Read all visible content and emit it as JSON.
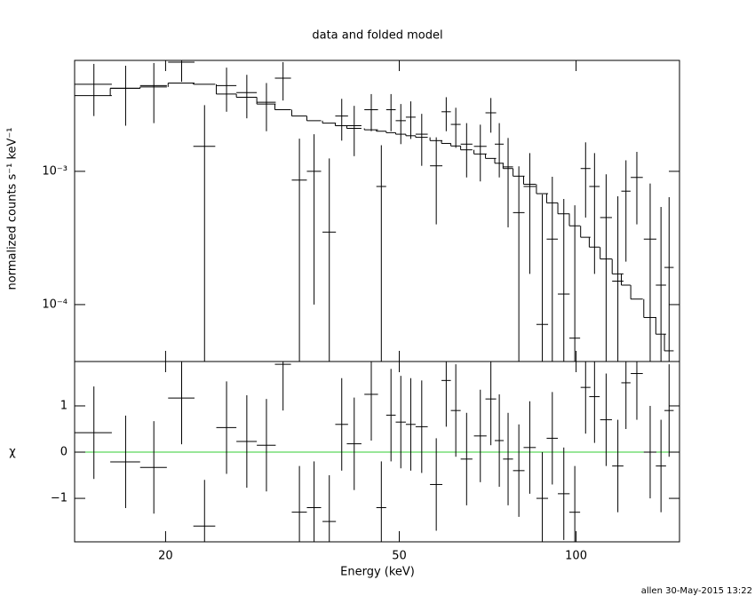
{
  "chart_data": [
    {
      "type": "errorbar",
      "title": "data and folded model",
      "ylabel": "normalized counts s⁻¹ keV⁻¹",
      "log_x": true,
      "log_y": true,
      "color": "#000000",
      "xlim": [
        14,
        150
      ],
      "ylim": [
        3.74e-05,
        0.0068
      ],
      "yticks": [
        {
          "value": 0.001,
          "label": "10⁻³"
        },
        {
          "value": 0.0001,
          "label": "10⁻⁴"
        }
      ],
      "x": [
        15.1,
        17.1,
        19.1,
        21.3,
        23.3,
        25.4,
        27.5,
        29.7,
        31.7,
        33.8,
        35.8,
        38.0,
        39.9,
        41.9,
        44.8,
        46.6,
        48.4,
        50.3,
        52.3,
        54.6,
        57.8,
        60.1,
        62.4,
        65.1,
        68.7,
        71.6,
        74.0,
        76.6,
        79.9,
        83.4,
        87.6,
        91.1,
        95.3,
        99.5,
        103.8,
        107.5,
        112.5,
        117.8,
        121.6,
        126.9,
        133.7,
        139.5,
        144
      ],
      "xerr": [
        1.1,
        1.0,
        1.0,
        1.1,
        1.0,
        1.0,
        1.1,
        1.1,
        1.0,
        1.0,
        1.0,
        1.0,
        1.0,
        1.2,
        1.2,
        0.9,
        0.9,
        1.0,
        1.0,
        1.3,
        1.4,
        1.1,
        1.2,
        1.5,
        1.7,
        1.5,
        1.3,
        1.5,
        1.8,
        2.0,
        2.0,
        2.0,
        2.2,
        2.1,
        2.0,
        2.2,
        2.6,
        2.6,
        2.2,
        3.0,
        3.3,
        2.8,
        2.6
      ],
      "values": [
        0.0045,
        0.0042,
        0.0044,
        0.0066,
        0.00154,
        0.0044,
        0.0039,
        0.0033,
        0.005,
        0.00086,
        0.001,
        0.00035,
        0.0026,
        0.0022,
        0.0029,
        0.00077,
        0.0029,
        0.0024,
        0.00255,
        0.0019,
        0.0011,
        0.0028,
        0.00225,
        0.0016,
        0.00154,
        0.00275,
        0.0016,
        0.00108,
        0.00049,
        0.00077,
        7.1e-05,
        0.00031,
        0.00012,
        5.6e-05,
        0.00105,
        0.00077,
        0.00045,
        0.00015,
        0.00071,
        0.0009,
        0.00031,
        0.00014,
        0.00019
      ],
      "yerr": [
        0.0019,
        0.002,
        0.0021,
        0.0019,
        0.0016,
        0.0016,
        0.0014,
        0.0013,
        0.0016,
        0.0009,
        0.0009,
        0.0009,
        0.0009,
        0.0009,
        0.0009,
        0.0008,
        0.0009,
        0.0008,
        0.0008,
        0.0008,
        0.0007,
        0.0008,
        0.00075,
        0.0007,
        0.0007,
        0.0008,
        0.0007,
        0.0007,
        0.0006,
        0.0006,
        0.0006,
        0.0006,
        0.0005,
        0.0005,
        0.0006,
        0.0006,
        0.0005,
        0.0005,
        0.0005,
        0.0005,
        0.0005,
        0.0004,
        0.00045
      ],
      "model": [
        0.0037,
        0.0042,
        0.0043,
        0.0046,
        0.0045,
        0.0038,
        0.0036,
        0.0032,
        0.0029,
        0.0026,
        0.0024,
        0.0023,
        0.0022,
        0.0021,
        0.00205,
        0.002,
        0.00195,
        0.0019,
        0.00185,
        0.0018,
        0.0017,
        0.00162,
        0.00155,
        0.00145,
        0.00135,
        0.00125,
        0.00115,
        0.00105,
        0.00092,
        0.0008,
        0.00068,
        0.00058,
        0.00048,
        0.00039,
        0.00032,
        0.00027,
        0.00022,
        0.00017,
        0.00014,
        0.00011,
        8e-05,
        6e-05,
        4.5e-05
      ]
    },
    {
      "type": "residual",
      "ylabel": "χ",
      "xlabel": "Energy (keV)",
      "color": "#000000",
      "zero_line_color": "#33cc33",
      "xlim": [
        14,
        150
      ],
      "ylim": [
        -1.94,
        1.96
      ],
      "xticks": [
        20,
        50,
        100
      ],
      "yticks": [
        {
          "value": 1,
          "label": "1"
        },
        {
          "value": 0,
          "label": "0"
        },
        {
          "value": -1,
          "label": "−1"
        }
      ],
      "values": [
        0.42,
        -0.21,
        -0.33,
        1.17,
        -1.6,
        0.53,
        0.23,
        0.15,
        1.9,
        -1.3,
        -1.2,
        -1.5,
        0.6,
        0.18,
        1.25,
        -1.2,
        0.8,
        0.65,
        0.6,
        0.55,
        -0.7,
        1.55,
        0.9,
        -0.15,
        0.35,
        1.15,
        0.25,
        -0.15,
        -0.4,
        0.1,
        -1.0,
        0.3,
        -0.9,
        -1.3,
        1.4,
        1.2,
        0.7,
        -0.3,
        1.5,
        1.7,
        0.0,
        -0.3,
        0.9
      ],
      "yerr": [
        1,
        1,
        1,
        1,
        1,
        1,
        1,
        1,
        1,
        1,
        1,
        1,
        1,
        1,
        1,
        1,
        1,
        1,
        1,
        1,
        1,
        1,
        1,
        1,
        1,
        1,
        1,
        1,
        1,
        1,
        1,
        1,
        1,
        1,
        1,
        1,
        1,
        1,
        1,
        1,
        1,
        1,
        1
      ]
    }
  ],
  "footer": "allen 30-May-2015 13:22"
}
